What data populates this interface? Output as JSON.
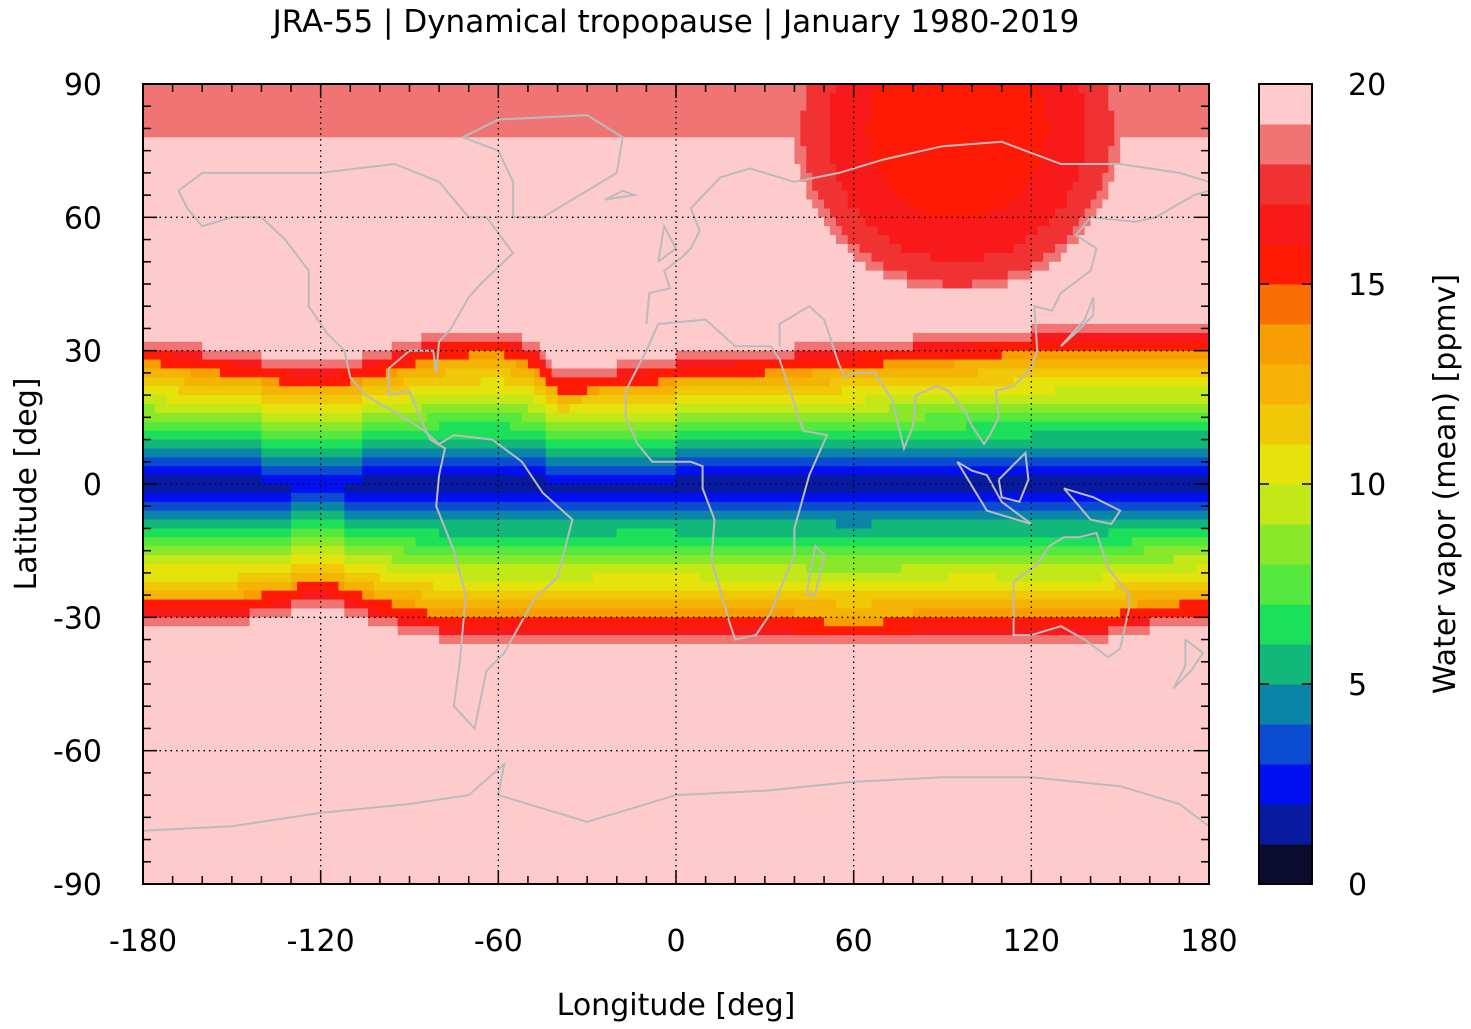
{
  "chart_data": {
    "type": "heatmap",
    "title": "JRA-55 | Dynamical tropopause | January 1980-2019",
    "xlabel": "Longitude [deg]",
    "ylabel": "Latitude [deg]",
    "xlim": [
      -180,
      180
    ],
    "ylim": [
      -90,
      90
    ],
    "xticks": [
      "-180",
      "-120",
      "-60",
      "0",
      "60",
      "120",
      "180"
    ],
    "yticks": [
      "90",
      "60",
      "30",
      "0",
      "-30",
      "-60",
      "-90"
    ],
    "grid": "dotted",
    "colorbar": {
      "label": "Water vapor (mean) [ppmv]",
      "range": [
        0,
        20
      ],
      "ticks": [
        "20",
        "15",
        "10",
        "5",
        "0"
      ],
      "levels": [
        {
          "from": 0,
          "to": 1,
          "color": "#0b0b2e"
        },
        {
          "from": 1,
          "to": 2,
          "color": "#081aa0"
        },
        {
          "from": 2,
          "to": 3,
          "color": "#0010f0"
        },
        {
          "from": 3,
          "to": 4,
          "color": "#0a4bd2"
        },
        {
          "from": 4,
          "to": 5,
          "color": "#0a85a8"
        },
        {
          "from": 5,
          "to": 6,
          "color": "#12b87a"
        },
        {
          "from": 6,
          "to": 7,
          "color": "#1de05a"
        },
        {
          "from": 7,
          "to": 8,
          "color": "#55e83e"
        },
        {
          "from": 8,
          "to": 9,
          "color": "#8ae82a"
        },
        {
          "from": 9,
          "to": 10,
          "color": "#c2e818"
        },
        {
          "from": 10,
          "to": 11,
          "color": "#e6e30c"
        },
        {
          "from": 11,
          "to": 12,
          "color": "#f0c808"
        },
        {
          "from": 12,
          "to": 13,
          "color": "#f5b306"
        },
        {
          "from": 13,
          "to": 14,
          "color": "#f79e04"
        },
        {
          "from": 14,
          "to": 15,
          "color": "#fa6e06"
        },
        {
          "from": 15,
          "to": 16,
          "color": "#ff1a05"
        },
        {
          "from": 16,
          "to": 17,
          "color": "#f81a1a"
        },
        {
          "from": 17,
          "to": 18,
          "color": "#f03232"
        },
        {
          "from": 18,
          "to": 19,
          "color": "#f07474"
        },
        {
          "from": 19,
          "to": 20,
          "color": "#fdcbcb"
        }
      ]
    },
    "coastline_color": "#bbbbbb",
    "fields": {
      "background_level": 19.5,
      "tropical_band": {
        "north_edge": [
          [
            -180,
            31
          ],
          [
            -140,
            27
          ],
          [
            -120,
            25
          ],
          [
            -100,
            28
          ],
          [
            -80,
            32
          ],
          [
            -60,
            33
          ],
          [
            -48,
            30
          ],
          [
            -40,
            24
          ],
          [
            -20,
            25
          ],
          [
            0,
            27
          ],
          [
            40,
            29
          ],
          [
            60,
            30
          ],
          [
            80,
            31
          ],
          [
            100,
            32
          ],
          [
            120,
            33
          ],
          [
            140,
            34
          ],
          [
            180,
            34
          ]
        ],
        "south_edge": [
          [
            -180,
            -30
          ],
          [
            -150,
            -30
          ],
          [
            -130,
            -27
          ],
          [
            -120,
            -25
          ],
          [
            -100,
            -30
          ],
          [
            -80,
            -33
          ],
          [
            -60,
            -34
          ],
          [
            -40,
            -34
          ],
          [
            -20,
            -33
          ],
          [
            0,
            -33
          ],
          [
            20,
            -34
          ],
          [
            40,
            -34
          ],
          [
            60,
            -35
          ],
          [
            80,
            -34
          ],
          [
            100,
            -33
          ],
          [
            120,
            -34
          ],
          [
            140,
            -34
          ],
          [
            160,
            -31
          ],
          [
            180,
            -30
          ]
        ],
        "core_min_ppmv": 1.5,
        "core_center_lat": 0
      },
      "polar_cap": {
        "center_lon": 95,
        "center_lat": 80,
        "south_edge_lat": 43,
        "ppmv": [
          17.5,
          16.5,
          15.5
        ]
      }
    }
  }
}
